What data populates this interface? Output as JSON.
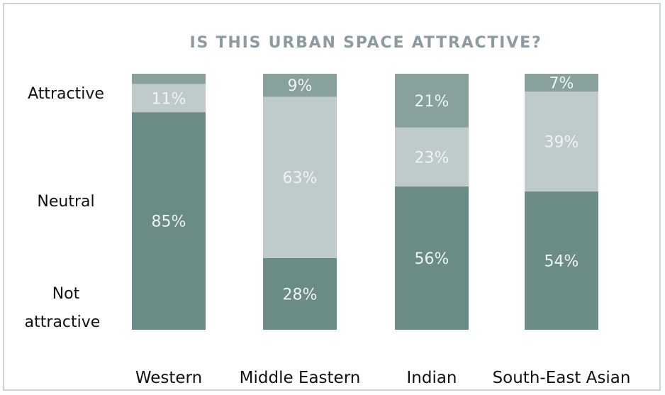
{
  "chart_data": {
    "type": "bar",
    "stacked": true,
    "percent_scale": true,
    "title": "IS THIS URBAN SPACE ATTRACTIVE?",
    "categories": [
      "Western",
      "Middle Eastern",
      "Indian",
      "South-East Asian"
    ],
    "y_category_labels": {
      "top": "Attractive",
      "middle": "Neutral",
      "bottom_line1": "Not",
      "bottom_line2": "attractive"
    },
    "series": [
      {
        "values": [
          85,
          28,
          56,
          54
        ],
        "labels": [
          "85%",
          "28%",
          "56%",
          "54%"
        ],
        "color": "#6b8b86"
      },
      {
        "values": [
          11,
          63,
          23,
          39
        ],
        "labels": [
          "11%",
          "63%",
          "23%",
          "39%"
        ],
        "color": "#bfcbcb"
      },
      {
        "values": [
          4,
          9,
          21,
          7
        ],
        "labels": [
          "",
          "9%",
          "21%",
          "7%"
        ],
        "color": "#88a19d"
      }
    ],
    "grid": false,
    "legend": "none"
  }
}
